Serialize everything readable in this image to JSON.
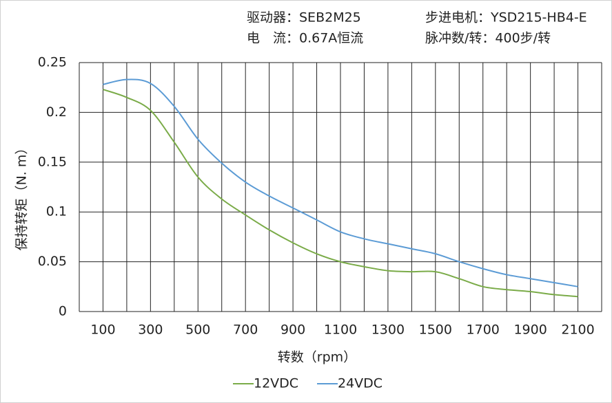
{
  "chart_data": {
    "type": "line",
    "header": [
      "驱动器：SEB2M25",
      "步进电机：YSD215-HB4-E",
      "电　流：0.67A恒流",
      "脉冲数/转：400步/转"
    ],
    "x_label": "转数（rpm）",
    "y_label": "保持转矩（N. m）",
    "x": [
      100,
      200,
      300,
      400,
      500,
      600,
      700,
      800,
      900,
      1000,
      1100,
      1200,
      1300,
      1400,
      1500,
      1600,
      1700,
      1800,
      1900,
      2000,
      2100
    ],
    "series": [
      {
        "name": "12VDC",
        "color": "#7aab48",
        "values": [
          0.223,
          0.215,
          0.202,
          0.17,
          0.135,
          0.113,
          0.097,
          0.082,
          0.069,
          0.058,
          0.05,
          0.045,
          0.041,
          0.04,
          0.04,
          0.033,
          0.025,
          0.022,
          0.02,
          0.017,
          0.015
        ]
      },
      {
        "name": "24VDC",
        "color": "#5b9bd5",
        "values": [
          0.228,
          0.233,
          0.229,
          0.206,
          0.173,
          0.149,
          0.13,
          0.116,
          0.104,
          0.092,
          0.08,
          0.073,
          0.068,
          0.063,
          0.058,
          0.05,
          0.043,
          0.037,
          0.033,
          0.029,
          0.025
        ]
      }
    ],
    "xlim": [
      0,
      2200
    ],
    "xticks": [
      100,
      300,
      500,
      700,
      900,
      1100,
      1300,
      1500,
      1700,
      1900,
      2100
    ],
    "xgrid": [
      0,
      100,
      200,
      300,
      400,
      500,
      600,
      700,
      800,
      900,
      1000,
      1100,
      1200,
      1300,
      1400,
      1500,
      1600,
      1700,
      1800,
      1900,
      2000,
      2100,
      2200
    ],
    "ylim": [
      0,
      0.25
    ],
    "yticks": [
      0,
      0.05,
      0.1,
      0.15,
      0.2,
      0.25
    ],
    "grid": true,
    "legend": "bottom"
  }
}
